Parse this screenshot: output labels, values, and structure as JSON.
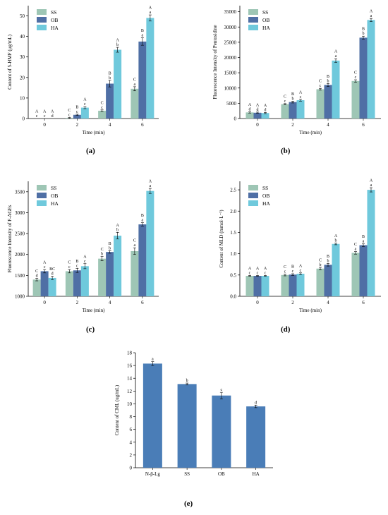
{
  "figure": {
    "colors": {
      "SS": "#9ec6b5",
      "OB": "#4f6fa5",
      "HA": "#6fc9dc",
      "single": "#4a7db7",
      "axis": "#000000"
    }
  },
  "chart_data": [
    {
      "type": "bar",
      "panel": "(a)",
      "categories": [
        "0",
        "2",
        "4",
        "6"
      ],
      "xlabel": "Time (min)",
      "ylabel": "Content of 5-HMF (μg/mL)",
      "ylim": [
        0,
        55
      ],
      "yticks": [
        0,
        10,
        20,
        30,
        40,
        50
      ],
      "legend": "top-left",
      "series": [
        {
          "name": "SS",
          "values": [
            0.0,
            0.3,
            3.8,
            14.5
          ],
          "errors": [
            0,
            0.2,
            0.4,
            1.0
          ],
          "labels": [
            "A c",
            "C c",
            "C c",
            "C a"
          ]
        },
        {
          "name": "OB",
          "values": [
            0.0,
            1.8,
            17.0,
            37.5
          ],
          "errors": [
            0,
            0.3,
            1.6,
            1.8
          ],
          "labels": [
            "A c",
            "B c",
            "B b",
            "B a"
          ]
        },
        {
          "name": "HA",
          "values": [
            0.0,
            5.3,
            33.5,
            49.0
          ],
          "errors": [
            0,
            0.5,
            1.2,
            1.5
          ],
          "labels": [
            "A d",
            "A c",
            "A b",
            "A a"
          ]
        }
      ]
    },
    {
      "type": "bar",
      "panel": "(b)",
      "categories": [
        "0",
        "2",
        "4",
        "6"
      ],
      "xlabel": "Time (min)",
      "ylabel": "Fluorescence Intensity of Pentosidine",
      "ylim": [
        0,
        37000
      ],
      "yticks": [
        0,
        5000,
        10000,
        15000,
        20000,
        25000,
        30000,
        35000
      ],
      "legend": "top-left",
      "series": [
        {
          "name": "SS",
          "values": [
            2000,
            4700,
            9600,
            12300
          ],
          "errors": [
            200,
            200,
            300,
            400
          ],
          "labels": [
            "A d",
            "C c",
            "C c",
            "C c"
          ]
        },
        {
          "name": "OB",
          "values": [
            1900,
            5400,
            11000,
            26500
          ],
          "errors": [
            200,
            300,
            500,
            500
          ],
          "labels": [
            "A d",
            "B b",
            "B b",
            "B b"
          ]
        },
        {
          "name": "HA",
          "values": [
            1800,
            6000,
            19000,
            32300
          ],
          "errors": [
            200,
            300,
            600,
            500
          ],
          "labels": [
            "A d",
            "A c",
            "A a",
            "A a"
          ]
        }
      ]
    },
    {
      "type": "bar",
      "panel": "(c)",
      "categories": [
        "0",
        "2",
        "4",
        "6"
      ],
      "xlabel": "Time (min)",
      "ylabel": "Fluorescence Intensity of F-AGEs",
      "ylim": [
        1000,
        3750
      ],
      "yticks": [
        1000,
        1500,
        2000,
        2500,
        3000,
        3500
      ],
      "legend": "top-left",
      "series": [
        {
          "name": "SS",
          "values": [
            1400,
            1600,
            1900,
            2080
          ],
          "errors": [
            30,
            40,
            50,
            80
          ],
          "labels": [
            "C d",
            "C c",
            "C b",
            "C a"
          ]
        },
        {
          "name": "OB",
          "values": [
            1600,
            1620,
            2060,
            2720
          ],
          "errors": [
            40,
            50,
            30,
            40
          ],
          "labels": [
            "A c",
            "B c",
            "B b",
            "B a"
          ]
        },
        {
          "name": "HA",
          "values": [
            1440,
            1720,
            2450,
            3520
          ],
          "errors": [
            40,
            60,
            80,
            60
          ],
          "labels": [
            "BC d",
            "A c",
            "A b",
            "A a"
          ]
        }
      ]
    },
    {
      "type": "bar",
      "panel": "(d)",
      "categories": [
        "0",
        "2",
        "4",
        "6"
      ],
      "xlabel": "Time (min)",
      "ylabel": "Content of MLD (mmol·L⁻¹)",
      "ylim": [
        0,
        2.7
      ],
      "yticks": [
        0.0,
        0.5,
        1.0,
        1.5,
        2.0,
        2.5
      ],
      "legend": "top-left",
      "series": [
        {
          "name": "SS",
          "values": [
            0.48,
            0.5,
            0.65,
            1.02
          ],
          "errors": [
            0.01,
            0.02,
            0.03,
            0.03
          ],
          "labels": [
            "A c",
            "C c",
            "C b",
            "C a"
          ]
        },
        {
          "name": "OB",
          "values": [
            0.48,
            0.51,
            0.74,
            1.2
          ],
          "errors": [
            0.01,
            0.02,
            0.03,
            0.03
          ],
          "labels": [
            "A c",
            "B c",
            "B b",
            "B a"
          ]
        },
        {
          "name": "HA",
          "values": [
            0.48,
            0.53,
            1.23,
            2.5
          ],
          "errors": [
            0.01,
            0.02,
            0.02,
            0.05
          ],
          "labels": [
            "A c",
            "A c",
            "A b",
            "A a"
          ]
        }
      ]
    },
    {
      "type": "bar",
      "panel": "(e)",
      "categories": [
        "N-β-Lg",
        "SS",
        "OB",
        "HA"
      ],
      "xlabel": "",
      "ylabel": "Content of CML (ug/mL)",
      "ylim": [
        0,
        18
      ],
      "yticks": [
        0,
        2,
        4,
        6,
        8,
        10,
        12,
        14,
        16,
        18
      ],
      "series": [
        {
          "name": "",
          "values": [
            16.3,
            13.1,
            11.3,
            9.6
          ],
          "errors": [
            0.3,
            0.15,
            0.5,
            0.2
          ],
          "labels": [
            "a",
            "b",
            "c",
            "d"
          ]
        }
      ]
    }
  ]
}
